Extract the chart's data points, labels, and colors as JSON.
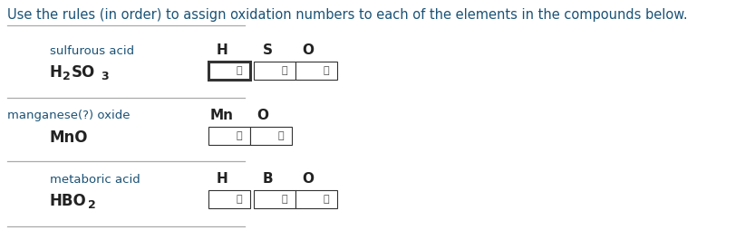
{
  "title": "Use the rules (in order) to assign oxidation numbers to each of the elements in the compounds below.",
  "title_color": "#1a5276",
  "title_fontsize": 10.5,
  "bg_color": "#ffffff",
  "separator_color": "#aaaaaa",
  "compound_name_color": "#1a5276",
  "formula_color": "#222222",
  "element_color": "#222222",
  "rows": [
    {
      "name": "sulfurous acid",
      "elements": [
        "H",
        "S",
        "O"
      ],
      "num_dropdowns": 3,
      "first_highlighted": true
    },
    {
      "name": "manganese(?) oxide",
      "elements": [
        "Mn",
        "O"
      ],
      "num_dropdowns": 2,
      "first_highlighted": false
    },
    {
      "name": "metaboric acid",
      "elements": [
        "H",
        "B",
        "O"
      ],
      "num_dropdowns": 3,
      "first_highlighted": false
    }
  ]
}
